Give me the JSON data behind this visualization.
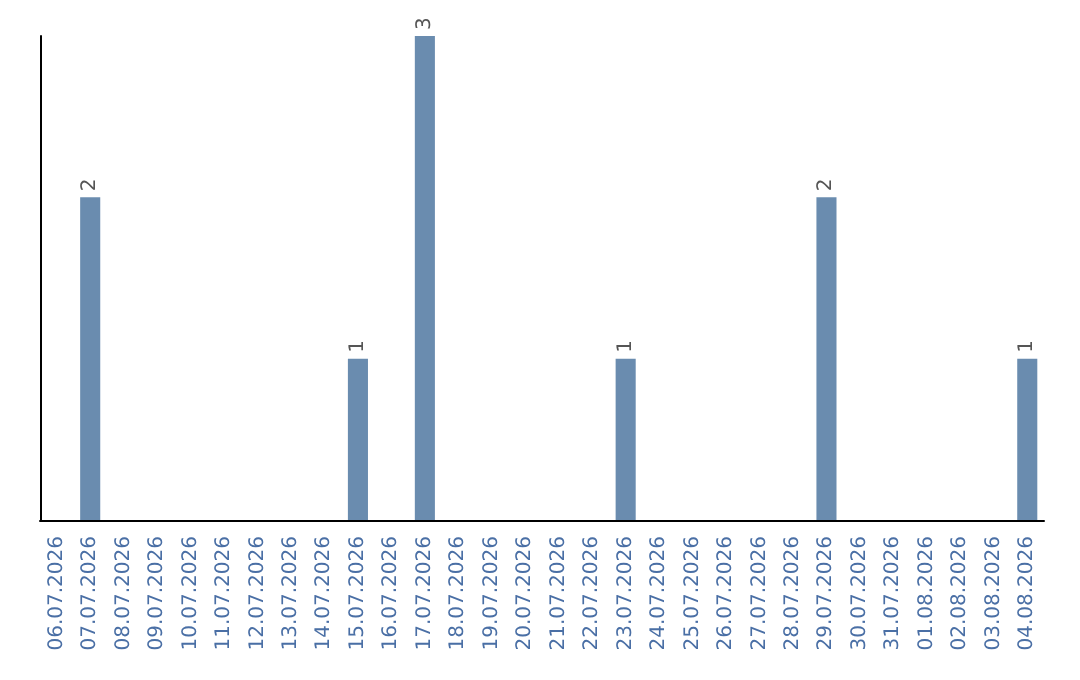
{
  "chart_data": {
    "type": "bar",
    "categories": [
      "06.07.2026",
      "07.07.2026",
      "08.07.2026",
      "09.07.2026",
      "10.07.2026",
      "11.07.2026",
      "12.07.2026",
      "13.07.2026",
      "14.07.2026",
      "15.07.2026",
      "16.07.2026",
      "17.07.2026",
      "18.07.2026",
      "19.07.2026",
      "20.07.2026",
      "21.07.2026",
      "22.07.2026",
      "23.07.2026",
      "24.07.2026",
      "25.07.2026",
      "26.07.2026",
      "27.07.2026",
      "28.07.2026",
      "29.07.2026",
      "30.07.2026",
      "31.07.2026",
      "01.08.2026",
      "02.08.2026",
      "03.08.2026",
      "04.08.2026"
    ],
    "values": [
      0,
      2,
      0,
      0,
      0,
      0,
      0,
      0,
      0,
      1,
      0,
      3,
      0,
      0,
      0,
      0,
      0,
      1,
      0,
      0,
      0,
      0,
      0,
      2,
      0,
      0,
      0,
      0,
      0,
      1
    ],
    "value_labels": [
      null,
      "2",
      null,
      null,
      null,
      null,
      null,
      null,
      null,
      "1",
      null,
      "3",
      null,
      null,
      null,
      null,
      null,
      "1",
      null,
      null,
      null,
      null,
      null,
      "2",
      null,
      null,
      null,
      null,
      null,
      "1"
    ],
    "color": "#6a8caf",
    "tick_labels": "x"
  }
}
